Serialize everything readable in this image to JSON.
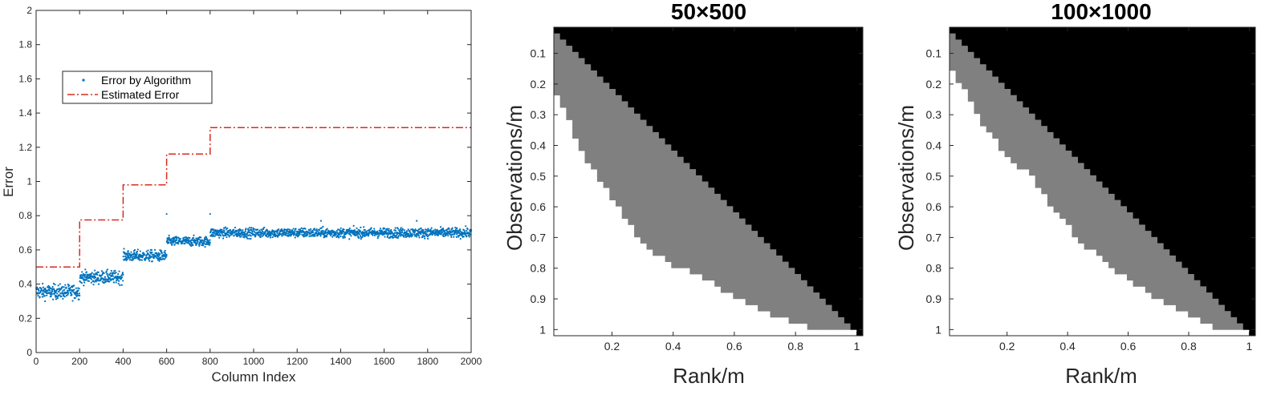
{
  "chart_data": [
    {
      "type": "scatter",
      "title": "",
      "xlabel": "Column Index",
      "ylabel": "Error",
      "xlim": [
        0,
        2000
      ],
      "ylim": [
        0,
        2
      ],
      "xticks": [
        0,
        200,
        400,
        600,
        800,
        1000,
        1200,
        1400,
        1600,
        1800,
        2000
      ],
      "xtick_labels": [
        "0",
        "200",
        "400",
        "600",
        "800",
        "1000",
        "1200",
        "1400",
        "1600",
        "1800",
        "2000"
      ],
      "yticks": [
        0,
        0.2,
        0.4,
        0.6,
        0.8,
        1,
        1.2,
        1.4,
        1.6,
        1.8,
        2
      ],
      "ytick_labels": [
        "0",
        "0.2",
        "0.4",
        "0.6",
        "0.8",
        "1",
        "1.2",
        "1.4",
        "1.6",
        "1.8",
        "2"
      ],
      "legend": {
        "location": "upper-left",
        "entries": [
          "Error by Algorithm",
          "Estimated Error"
        ]
      },
      "series": [
        {
          "name": "Error by Algorithm",
          "kind": "scatter",
          "color": "#0072bd",
          "segments": [
            {
              "x_start": 1,
              "x_end": 200,
              "mean": 0.355,
              "spread": 0.045
            },
            {
              "x_start": 201,
              "x_end": 400,
              "mean": 0.44,
              "spread": 0.04
            },
            {
              "x_start": 401,
              "x_end": 600,
              "mean": 0.565,
              "spread": 0.035
            },
            {
              "x_start": 601,
              "x_end": 800,
              "mean": 0.65,
              "spread": 0.03
            },
            {
              "x_start": 801,
              "x_end": 2000,
              "mean": 0.7,
              "spread": 0.03
            }
          ],
          "outliers": [
            [
              600,
              0.81
            ],
            [
              800,
              0.81
            ],
            [
              1310,
              0.77
            ],
            [
              1750,
              0.77
            ]
          ]
        },
        {
          "name": "Estimated Error",
          "kind": "step",
          "color": "#d92b1f",
          "x": [
            0,
            200,
            200,
            400,
            400,
            600,
            600,
            800,
            800,
            2000
          ],
          "y": [
            0.5,
            0.5,
            0.775,
            0.775,
            0.98,
            0.98,
            1.16,
            1.16,
            1.315,
            1.315
          ]
        }
      ]
    },
    {
      "type": "heatmap",
      "title": "50×500",
      "xlabel": "Rank/m",
      "ylabel": "Observations/m",
      "xticks": [
        0.2,
        0.4,
        0.6,
        0.8,
        1
      ],
      "xtick_labels": [
        "0.2",
        "0.4",
        "0.6",
        "0.8",
        "1"
      ],
      "yticks": [
        0.1,
        0.2,
        0.3,
        0.4,
        0.5,
        0.6,
        0.7,
        0.8,
        0.9,
        1
      ],
      "ytick_labels": [
        "0.1",
        "0.2",
        "0.3",
        "0.4",
        "0.5",
        "0.6",
        "0.7",
        "0.8",
        "0.9",
        "1"
      ],
      "xlim": [
        0.01,
        1.02
      ],
      "ylim": [
        0.015,
        1.02
      ],
      "grid": 50,
      "colors": {
        "failure": "#000000",
        "partial": "#808080",
        "success": "#ffffff"
      },
      "success_boundary": [
        [
          0.02,
          0.23
        ],
        [
          0.1,
          0.42
        ],
        [
          0.2,
          0.57
        ],
        [
          0.3,
          0.72
        ],
        [
          0.4,
          0.79
        ],
        [
          0.5,
          0.83
        ],
        [
          0.6,
          0.89
        ],
        [
          0.7,
          0.94
        ],
        [
          0.8,
          0.98
        ],
        [
          0.86,
          1.0
        ],
        [
          1.0,
          1.0
        ]
      ],
      "failure_boundary_offset": 0.02
    },
    {
      "type": "heatmap",
      "title": "100×1000",
      "xlabel": "Rank/m",
      "ylabel": "Observations/m",
      "xticks": [
        0.2,
        0.4,
        0.6,
        0.8,
        1
      ],
      "xtick_labels": [
        "0.2",
        "0.4",
        "0.6",
        "0.8",
        "1"
      ],
      "yticks": [
        0.1,
        0.2,
        0.3,
        0.4,
        0.5,
        0.6,
        0.7,
        0.8,
        0.9,
        1
      ],
      "ytick_labels": [
        "0.1",
        "0.2",
        "0.3",
        "0.4",
        "0.5",
        "0.6",
        "0.7",
        "0.8",
        "0.9",
        "1"
      ],
      "xlim": [
        0.01,
        1.02
      ],
      "ylim": [
        0.015,
        1.02
      ],
      "grid": 50,
      "colors": {
        "failure": "#000000",
        "partial": "#808080",
        "success": "#ffffff"
      },
      "success_boundary": [
        [
          0.02,
          0.15
        ],
        [
          0.1,
          0.3
        ],
        [
          0.2,
          0.44
        ],
        [
          0.28,
          0.5
        ],
        [
          0.35,
          0.6
        ],
        [
          0.45,
          0.72
        ],
        [
          0.55,
          0.8
        ],
        [
          0.65,
          0.87
        ],
        [
          0.75,
          0.93
        ],
        [
          0.85,
          0.98
        ],
        [
          0.9,
          1.0
        ],
        [
          1.0,
          1.0
        ]
      ],
      "failure_boundary_offset": 0.02
    }
  ]
}
